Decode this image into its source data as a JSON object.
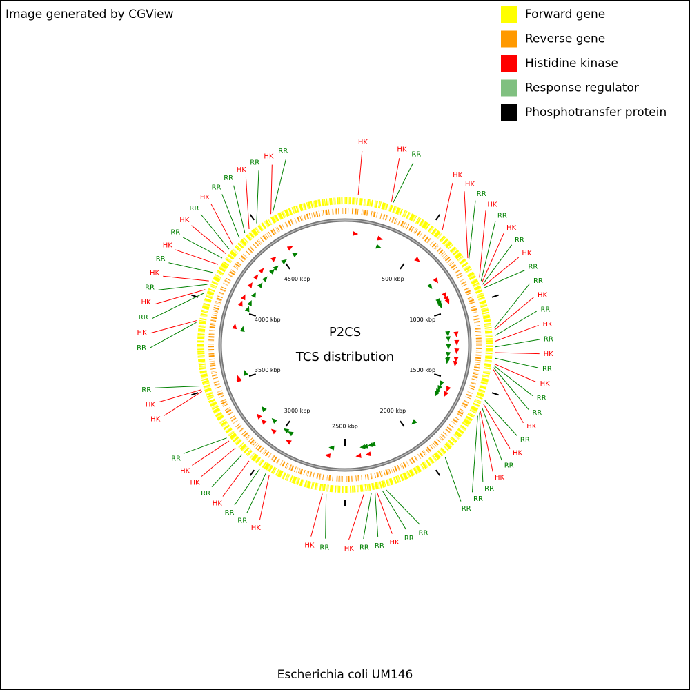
{
  "header": {
    "text": "Image generated by CGView"
  },
  "chart_data": {
    "type": "circular_genome",
    "title": "P2CS",
    "subtitle": "TCS distribution",
    "caption": "Escherichia coli UM146",
    "legend": [
      {
        "label": "Forward gene",
        "color": "#ffff00"
      },
      {
        "label": "Reverse gene",
        "color": "#ff9900"
      },
      {
        "label": "Histidine kinase",
        "color": "#ff0000"
      },
      {
        "label": "Response regulator",
        "color": "#80c080"
      },
      {
        "label": "Phosphotransfer protein",
        "color": "#000000"
      }
    ],
    "xlim": [
      0,
      5000
    ],
    "xticks": [
      {
        "value": 500,
        "label": "500 kbp"
      },
      {
        "value": 1000,
        "label": "1000 kbp"
      },
      {
        "value": 1500,
        "label": "1500 kbp"
      },
      {
        "value": 2000,
        "label": "2000 kbp"
      },
      {
        "value": 2500,
        "label": "2500 kbp"
      },
      {
        "value": 3000,
        "label": "3000 kbp"
      },
      {
        "value": 3500,
        "label": "3500 kbp"
      },
      {
        "value": 4000,
        "label": "4000 kbp"
      },
      {
        "value": 4500,
        "label": "4500 kbp"
      }
    ],
    "series": [
      {
        "name": "Histidine kinase",
        "label": "HK",
        "color": "#ff0000",
        "x": [
          70,
          250,
          560,
          760,
          880,
          910,
          930,
          1170,
          1230,
          1290,
          1350,
          1380,
          1570,
          1610,
          2330,
          2400,
          2620,
          2920,
          3050,
          3150,
          3200,
          3500,
          3510,
          3880,
          4050,
          4100,
          4200,
          4270,
          4330,
          4450,
          4590
        ]
      },
      {
        "name": "Response regulator",
        "label": "RR",
        "color": "#008000",
        "x": [
          260,
          770,
          900,
          920,
          940,
          1160,
          1200,
          1260,
          1320,
          1360,
          1370,
          1550,
          1590,
          1620,
          1640,
          1920,
          2280,
          2300,
          2340,
          2360,
          2600,
          2940,
          2980,
          3100,
          3220,
          3530,
          3870,
          4030,
          4080,
          4150,
          4240,
          4300,
          4380,
          4420,
          4500,
          4600
        ]
      }
    ]
  }
}
